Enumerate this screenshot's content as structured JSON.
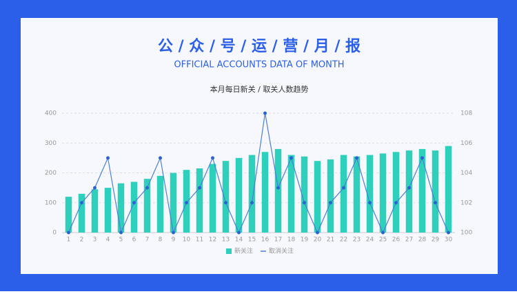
{
  "header": {
    "title": "公 / 众 / 号 / 运 / 营 / 月 / 报",
    "subtitle": "OFFICIAL ACCOUNTS  DATA OF MONTH"
  },
  "chart_data": {
    "type": "bar_line",
    "title": "本月每日新关 / 取关人数趋势",
    "categories": [
      "1",
      "2",
      "3",
      "4",
      "5",
      "6",
      "7",
      "8",
      "9",
      "10",
      "11",
      "12",
      "13",
      "14",
      "15",
      "16",
      "17",
      "18",
      "19",
      "20",
      "21",
      "22",
      "23",
      "24",
      "25",
      "26",
      "27",
      "28",
      "29",
      "30"
    ],
    "series": [
      {
        "name": "新关注",
        "type": "bar",
        "color": "#2ecfbb",
        "values": [
          120,
          130,
          145,
          150,
          165,
          170,
          180,
          190,
          200,
          210,
          215,
          230,
          240,
          250,
          260,
          270,
          280,
          260,
          255,
          240,
          245,
          260,
          255,
          260,
          265,
          270,
          275,
          280,
          275,
          290
        ]
      },
      {
        "name": "取消关注",
        "type": "line",
        "axis": "y2",
        "color": "#4a7fd6",
        "values": [
          100,
          102,
          103,
          105,
          100,
          102,
          103,
          105,
          100,
          102,
          103,
          105,
          102,
          100,
          102,
          108,
          103,
          105,
          102,
          100,
          102,
          103,
          105,
          102,
          100,
          102,
          103,
          105,
          102,
          100
        ]
      }
    ],
    "ylim": [
      0,
      400
    ],
    "yticks": [
      0,
      100,
      200,
      300,
      400
    ],
    "y2lim": [
      100,
      108
    ],
    "y2ticks": [
      100,
      102,
      104,
      106,
      108
    ],
    "grid": true,
    "legend": "bottom"
  }
}
